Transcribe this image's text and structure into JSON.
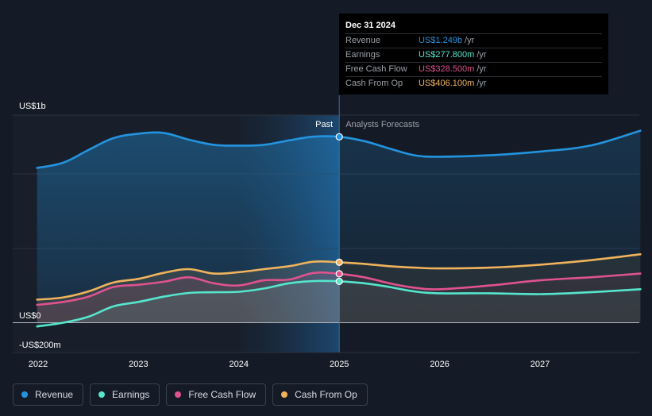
{
  "tooltip": {
    "date": "Dec 31 2024",
    "rows": [
      {
        "label": "Revenue",
        "value": "US$1.249b",
        "unit": "/yr",
        "color": "#2394df"
      },
      {
        "label": "Earnings",
        "value": "US$277.800m",
        "unit": "/yr",
        "color": "#55e6cd"
      },
      {
        "label": "Free Cash Flow",
        "value": "US$328.500m",
        "unit": "/yr",
        "color": "#e0528f"
      },
      {
        "label": "Cash From Op",
        "value": "US$406.100m",
        "unit": "/yr",
        "color": "#f0b35c"
      }
    ]
  },
  "chart_data": {
    "type": "area",
    "y_tick_labels": [
      "US$1b",
      "US$0",
      "-US$200m"
    ],
    "x_tick_labels": [
      "2022",
      "2023",
      "2024",
      "2025",
      "2026",
      "2027"
    ],
    "ylim": [
      -200,
      1400
    ],
    "past_label": "Past",
    "forecast_label": "Analysts Forecasts",
    "divider_date": "2024-12-31",
    "series": [
      {
        "name": "Revenue",
        "color": "#2394df",
        "x": [
          2021.99,
          2022.25,
          2022.5,
          2022.75,
          2023.0,
          2023.25,
          2023.5,
          2023.75,
          2024.0,
          2024.25,
          2024.5,
          2024.75,
          2025.0,
          2025.25,
          2025.5,
          2025.75,
          2026.0,
          2026.5,
          2027.0,
          2027.5,
          2028.0
        ],
        "y": [
          1040,
          1075,
          1160,
          1240,
          1270,
          1275,
          1230,
          1195,
          1190,
          1195,
          1225,
          1250,
          1249,
          1220,
          1170,
          1125,
          1115,
          1125,
          1150,
          1190,
          1290
        ]
      },
      {
        "name": "Earnings",
        "color": "#55e6cd",
        "x": [
          2021.99,
          2022.25,
          2022.5,
          2022.75,
          2023.0,
          2023.25,
          2023.5,
          2023.75,
          2024.0,
          2024.25,
          2024.5,
          2024.75,
          2025.0,
          2025.25,
          2025.5,
          2025.75,
          2026.0,
          2026.5,
          2027.0,
          2027.5,
          2028.0
        ],
        "y": [
          -25,
          0,
          40,
          110,
          140,
          175,
          200,
          205,
          208,
          230,
          265,
          280,
          277.8,
          265,
          240,
          210,
          198,
          198,
          192,
          205,
          225
        ]
      },
      {
        "name": "Free Cash Flow",
        "color": "#e0528f",
        "x": [
          2021.99,
          2022.25,
          2022.5,
          2022.75,
          2023.0,
          2023.25,
          2023.5,
          2023.75,
          2024.0,
          2024.25,
          2024.5,
          2024.75,
          2025.0,
          2025.25,
          2025.5,
          2025.75,
          2026.0,
          2026.5,
          2027.0,
          2027.5,
          2028.0
        ],
        "y": [
          120,
          140,
          175,
          240,
          255,
          275,
          305,
          265,
          250,
          285,
          290,
          335,
          328.5,
          305,
          265,
          235,
          225,
          250,
          285,
          305,
          330
        ]
      },
      {
        "name": "Cash From Op",
        "color": "#f0b35c",
        "x": [
          2021.99,
          2022.25,
          2022.5,
          2022.75,
          2023.0,
          2023.25,
          2023.5,
          2023.75,
          2024.0,
          2024.25,
          2024.5,
          2024.75,
          2025.0,
          2025.25,
          2025.5,
          2025.75,
          2026.0,
          2026.5,
          2027.0,
          2027.5,
          2028.0
        ],
        "y": [
          155,
          170,
          210,
          270,
          295,
          335,
          360,
          330,
          340,
          360,
          380,
          410,
          406.1,
          395,
          380,
          370,
          365,
          370,
          390,
          420,
          460
        ]
      }
    ],
    "grid": true,
    "legend_position": "bottom-left"
  },
  "legend": [
    {
      "label": "Revenue",
      "color": "#2394df"
    },
    {
      "label": "Earnings",
      "color": "#55e6cd"
    },
    {
      "label": "Free Cash Flow",
      "color": "#e0528f"
    },
    {
      "label": "Cash From Op",
      "color": "#f0b35c"
    }
  ]
}
